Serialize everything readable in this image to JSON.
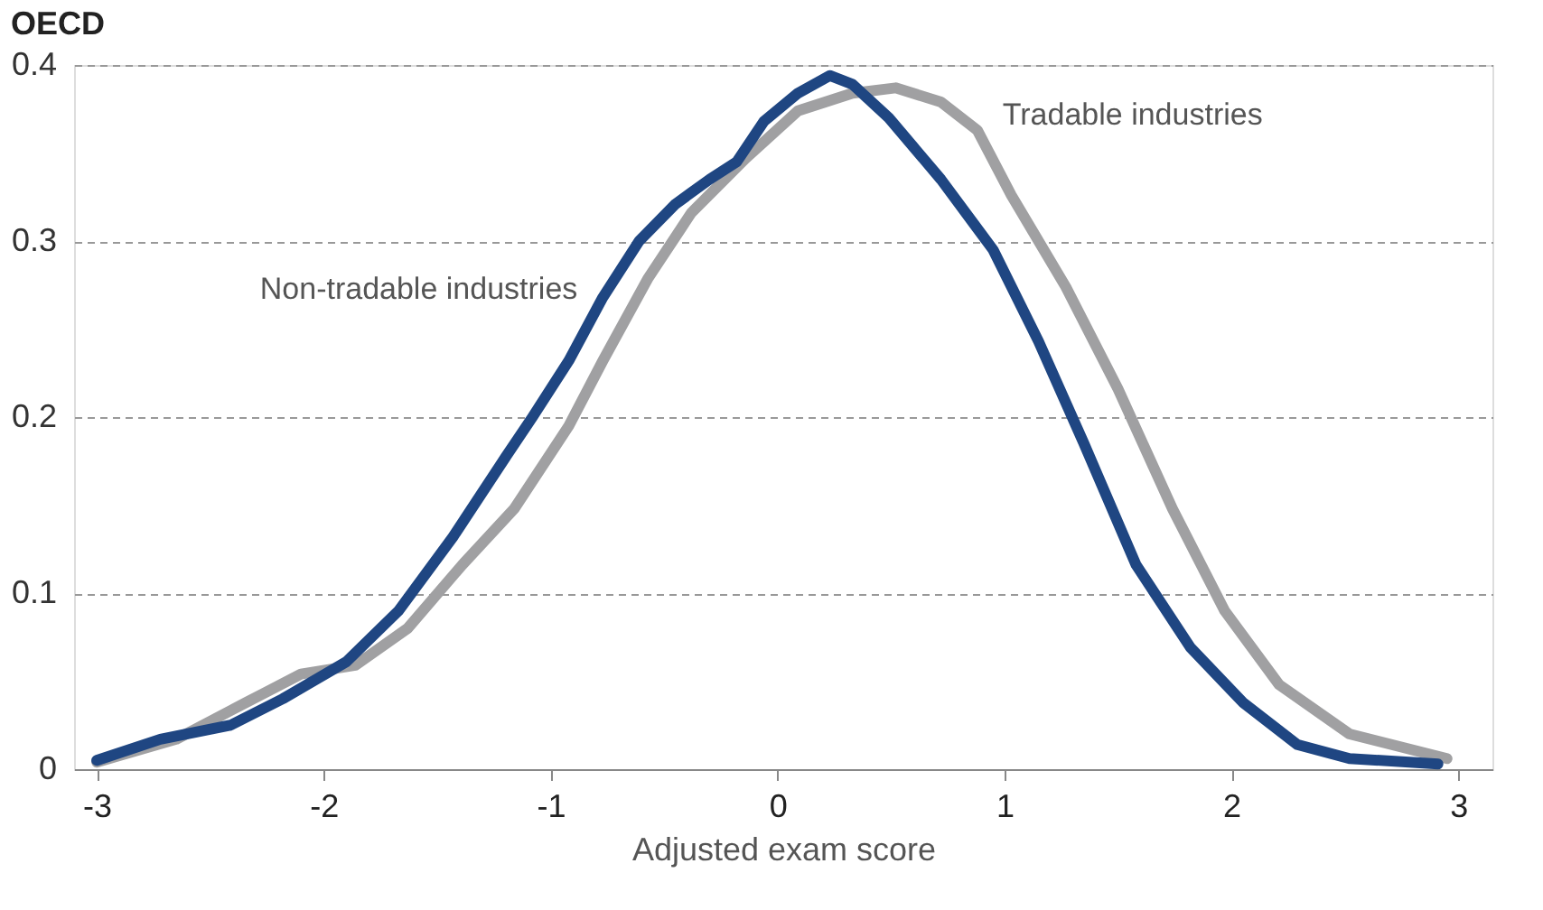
{
  "chart_data": {
    "type": "line",
    "title": "OECD",
    "xlabel": "Adjusted exam score",
    "xlim": [
      -3.1,
      3.15
    ],
    "xticks": [
      -3,
      -2,
      -1,
      0,
      1,
      2,
      3
    ],
    "ylim": [
      0,
      0.4
    ],
    "yticks": [
      0,
      0.1,
      0.2,
      0.3,
      0.4
    ],
    "grid": "y",
    "legend": false,
    "marker": "none",
    "line_style": "solid",
    "series": [
      {
        "name": "Tradable industries",
        "color": "#a0a0a2",
        "x": [
          -3,
          -2.65,
          -2.34,
          -2.1,
          -1.86,
          -1.63,
          -1.39,
          -1.16,
          -0.92,
          -0.77,
          -0.57,
          -0.38,
          -0.14,
          0.09,
          0.33,
          0.52,
          0.72,
          0.88,
          1.03,
          1.27,
          1.5,
          1.74,
          1.97,
          2.21,
          2.52,
          2.95
        ],
        "values": [
          0.004,
          0.017,
          0.038,
          0.054,
          0.059,
          0.08,
          0.116,
          0.148,
          0.195,
          0.232,
          0.279,
          0.316,
          0.347,
          0.374,
          0.384,
          0.387,
          0.379,
          0.363,
          0.326,
          0.274,
          0.216,
          0.148,
          0.09,
          0.048,
          0.02,
          0.006
        ]
      },
      {
        "name": "Non-tradable industries",
        "color": "#1f4682",
        "x": [
          -3,
          -2.72,
          -2.41,
          -2.18,
          -1.9,
          -1.67,
          -1.43,
          -1.2,
          -1.08,
          -0.92,
          -0.77,
          -0.61,
          -0.45,
          -0.3,
          -0.18,
          -0.06,
          0.09,
          0.23,
          0.33,
          0.49,
          0.72,
          0.95,
          1.15,
          1.35,
          1.58,
          1.82,
          2.05,
          2.29,
          2.52,
          2.91
        ],
        "values": [
          0.005,
          0.017,
          0.025,
          0.04,
          0.061,
          0.09,
          0.132,
          0.177,
          0.2,
          0.232,
          0.268,
          0.3,
          0.321,
          0.335,
          0.345,
          0.368,
          0.384,
          0.394,
          0.389,
          0.37,
          0.335,
          0.295,
          0.243,
          0.185,
          0.116,
          0.069,
          0.038,
          0.014,
          0.006,
          0.003
        ]
      }
    ]
  }
}
